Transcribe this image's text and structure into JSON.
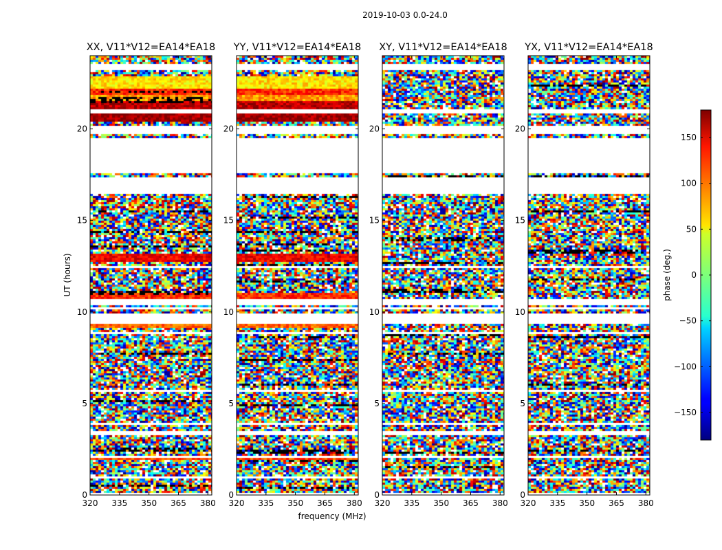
{
  "chart_data": {
    "type": "heatmap",
    "title": "2019-10-03 0.0-24.0",
    "xlabel": "frequency (MHz)",
    "ylabel": "UT (hours)",
    "xlim": [
      320,
      382
    ],
    "ylim": [
      0,
      24
    ],
    "xticks": [
      320,
      335,
      350,
      365,
      380
    ],
    "yticks": [
      0,
      5,
      10,
      15,
      20
    ],
    "xtick_labels": [
      "320",
      "335",
      "350",
      "365",
      "380"
    ],
    "ytick_labels": [
      "0",
      "5",
      "10",
      "15",
      "20"
    ],
    "panels": [
      {
        "title": "XX, V11*V12=EA14*EA18",
        "coherent": true
      },
      {
        "title": "YY, V11*V12=EA14*EA18",
        "coherent": true
      },
      {
        "title": "XY, V11*V12=EA14*EA18",
        "coherent": false
      },
      {
        "title": "YX, V11*V12=EA14*EA18",
        "coherent": false
      }
    ],
    "colorbar": {
      "label": "phase (deg.)",
      "range": [
        -180,
        180
      ],
      "ticks": [
        -150,
        -100,
        -50,
        0,
        50,
        100,
        150
      ],
      "tick_labels": [
        "−150",
        "−100",
        "−50",
        "0",
        "50",
        "100",
        "150"
      ],
      "colormap": "jet"
    },
    "gaps_ut_hours": [
      [
        0.0,
        0.15
      ],
      [
        0.85,
        1.05
      ],
      [
        1.75,
        1.85
      ],
      [
        2.0,
        2.15
      ],
      [
        3.3,
        3.45
      ],
      [
        3.8,
        3.9
      ],
      [
        5.6,
        5.7
      ],
      [
        8.75,
        8.85
      ],
      [
        9.35,
        9.9
      ],
      [
        10.1,
        10.2
      ],
      [
        10.35,
        10.65
      ],
      [
        12.4,
        12.55
      ],
      [
        16.4,
        17.35
      ],
      [
        17.6,
        19.5
      ],
      [
        19.7,
        20.15
      ],
      [
        20.35,
        20.45
      ],
      [
        20.9,
        21.1
      ],
      [
        23.25,
        23.5
      ]
    ],
    "coherent_bands": [
      {
        "ut": [
          21.1,
          21.5
        ],
        "phase": 160
      },
      {
        "ut": [
          21.5,
          21.9
        ],
        "phase": 80
      },
      {
        "ut": [
          21.9,
          22.2
        ],
        "phase": 120
      },
      {
        "ut": [
          22.2,
          22.9
        ],
        "phase": 55
      },
      {
        "ut": [
          20.45,
          20.85
        ],
        "phase": 170
      },
      {
        "ut": [
          12.7,
          13.2
        ],
        "phase": 140
      },
      {
        "ut": [
          10.65,
          11.0
        ],
        "phase": 120
      },
      {
        "ut": [
          9.1,
          9.35
        ],
        "phase": 100
      },
      {
        "ut": [
          1.95,
          2.05
        ],
        "phase": 110
      }
    ]
  }
}
